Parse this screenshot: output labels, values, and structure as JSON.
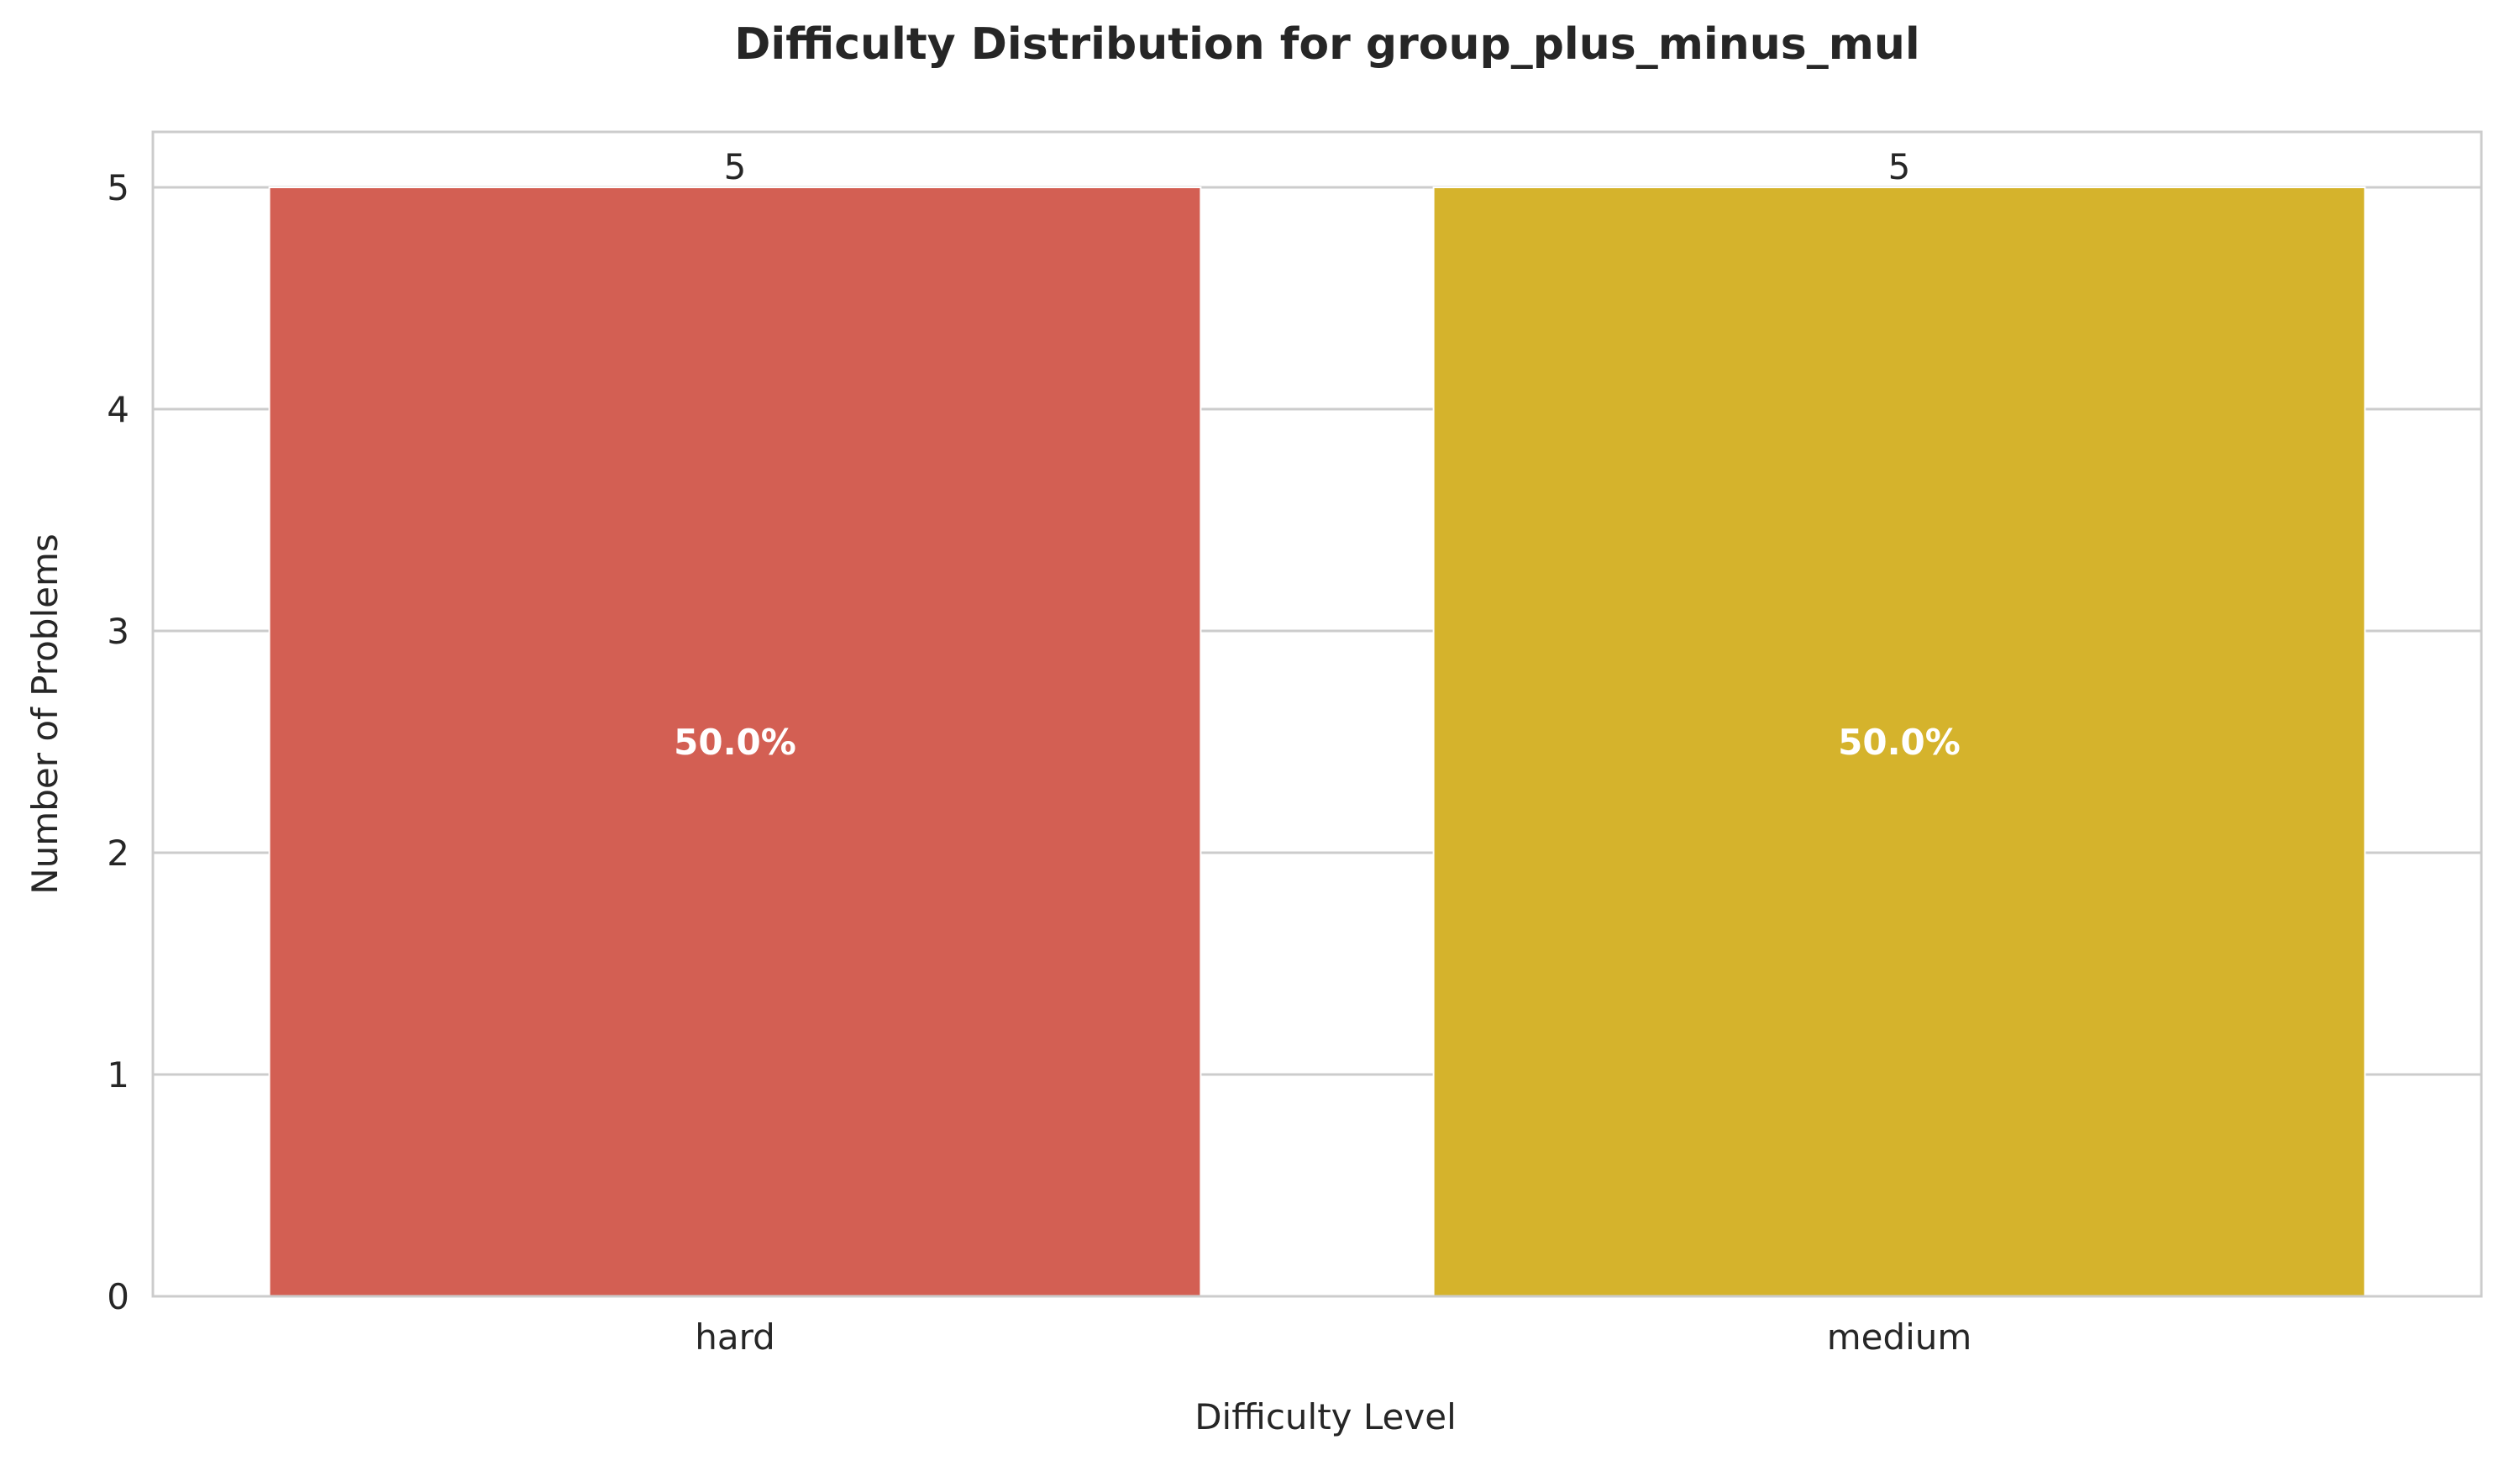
{
  "chart_data": {
    "type": "bar",
    "title": "Difficulty Distribution for group_plus_minus_mul",
    "xlabel": "Difficulty Level",
    "ylabel": "Number of Problems",
    "categories": [
      "hard",
      "medium"
    ],
    "values": [
      5,
      5
    ],
    "value_labels": [
      "5",
      "5"
    ],
    "percent_labels": [
      "50.0%",
      "50.0%"
    ],
    "bar_colors": [
      "#d35f53",
      "#d5b32c"
    ],
    "ylim": [
      0,
      5.25
    ],
    "yticks": [
      0,
      1,
      2,
      3,
      4,
      5
    ],
    "ytick_labels": [
      "0",
      "1",
      "2",
      "3",
      "4",
      "5"
    ],
    "grid": true,
    "grid_color": "#cccccc",
    "text_color": "#262626"
  }
}
